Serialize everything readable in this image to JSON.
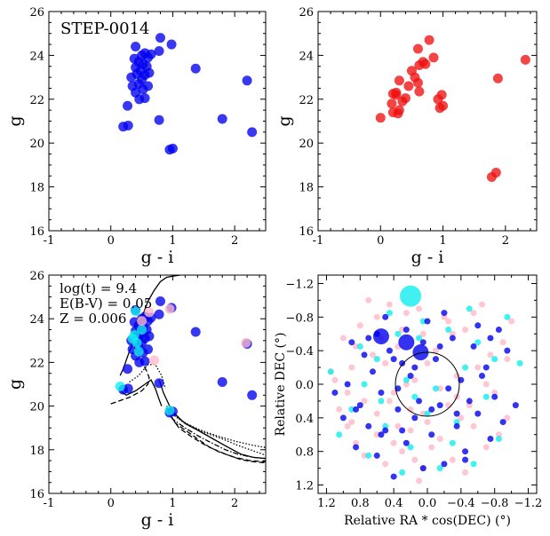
{
  "chart_data": [
    {
      "type": "scatter",
      "title": "STEP-0014",
      "xlabel": "g - i",
      "ylabel": "g",
      "xlim": [
        -1,
        2.5
      ],
      "ylim": [
        26,
        16
      ],
      "xticks": [
        "-1",
        "0",
        "1",
        "2"
      ],
      "yticks": [
        "16",
        "18",
        "20",
        "22",
        "24",
        "26"
      ],
      "series": [
        {
          "name": "members",
          "color": "#0000ee",
          "x": [
            0.95,
            1.0,
            0.2,
            0.28,
            0.27,
            0.78,
            0.46,
            0.55,
            0.4,
            0.52,
            0.35,
            0.6,
            0.45,
            0.5,
            0.33,
            0.55,
            0.42,
            0.62,
            0.48,
            0.4,
            0.58,
            0.52,
            0.45,
            0.38,
            0.6,
            0.5,
            0.65,
            0.55,
            0.78,
            0.4,
            0.8,
            0.98,
            1.37,
            1.8,
            2.2,
            2.28
          ],
          "y": [
            19.7,
            19.75,
            20.75,
            20.8,
            21.7,
            21.05,
            22.0,
            22.05,
            22.3,
            22.45,
            22.6,
            22.6,
            22.7,
            22.9,
            23.0,
            23.1,
            23.15,
            23.2,
            23.3,
            23.45,
            23.5,
            23.6,
            23.7,
            23.85,
            23.9,
            24.0,
            24.05,
            24.1,
            24.2,
            24.4,
            24.8,
            24.5,
            23.4,
            21.1,
            22.85,
            20.5
          ]
        }
      ]
    },
    {
      "type": "scatter",
      "xlabel": "g - i",
      "ylabel": "g",
      "xlim": [
        -1,
        2.5
      ],
      "ylim": [
        26,
        16
      ],
      "xticks": [
        "-1",
        "0",
        "1",
        "2"
      ],
      "yticks": [
        "16",
        "18",
        "20",
        "22",
        "24",
        "26"
      ],
      "series": [
        {
          "name": "field",
          "color": "#ee1111",
          "x": [
            0.0,
            0.2,
            0.28,
            0.18,
            0.35,
            0.25,
            0.45,
            0.62,
            0.6,
            0.95,
            1.0,
            0.92,
            0.98,
            0.3,
            0.55,
            0.5,
            0.62,
            0.68,
            0.72,
            0.85,
            0.6,
            0.78,
            1.78,
            1.85,
            1.88,
            2.32,
            0.25,
            0.3,
            0.4,
            0.2
          ],
          "y": [
            21.15,
            21.4,
            21.35,
            21.8,
            21.9,
            22.3,
            22.6,
            22.35,
            22.75,
            21.6,
            21.7,
            22.0,
            22.2,
            22.85,
            23.0,
            23.3,
            23.55,
            23.7,
            23.6,
            23.9,
            24.3,
            24.7,
            18.45,
            18.65,
            22.95,
            23.8,
            22.2,
            21.5,
            22.05,
            22.25
          ]
        }
      ]
    },
    {
      "type": "scatter",
      "xlabel": "g - i",
      "ylabel": "g",
      "xlim": [
        -1,
        2.5
      ],
      "ylim": [
        26,
        16
      ],
      "xticks": [
        "-1",
        "0",
        "1",
        "2"
      ],
      "yticks": [
        "16",
        "18",
        "20",
        "22",
        "24",
        "26"
      ],
      "annotations": [
        "log(t) = 9.4",
        "E(B-V) = 0.05",
        "Z = 0.006"
      ],
      "series": [
        {
          "name": "members",
          "color": "#0000ee",
          "x": [
            0.95,
            1.0,
            0.2,
            0.28,
            0.27,
            0.78,
            0.46,
            0.55,
            0.4,
            0.52,
            0.35,
            0.6,
            0.45,
            0.5,
            0.33,
            0.55,
            0.42,
            0.62,
            0.48,
            0.4,
            0.58,
            0.52,
            0.45,
            0.38,
            0.6,
            0.5,
            0.65,
            0.55,
            0.78,
            0.4,
            0.8,
            0.98,
            1.37,
            1.8,
            2.2,
            2.28
          ],
          "y": [
            19.7,
            19.75,
            20.75,
            20.8,
            21.7,
            21.05,
            22.0,
            22.05,
            22.3,
            22.45,
            22.6,
            22.6,
            22.7,
            22.9,
            23.0,
            23.1,
            23.15,
            23.2,
            23.3,
            23.45,
            23.5,
            23.6,
            23.7,
            23.85,
            23.9,
            24.0,
            24.05,
            24.1,
            24.2,
            24.4,
            24.8,
            24.5,
            23.4,
            21.1,
            22.85,
            20.5
          ]
        },
        {
          "name": "cyan",
          "color": "#11eeee",
          "x": [
            0.35,
            0.38,
            0.4,
            0.5,
            0.42,
            0.45,
            0.95,
            0.15
          ],
          "y": [
            23.1,
            23.25,
            24.35,
            23.5,
            22.9,
            22.5,
            19.8,
            20.9
          ]
        },
        {
          "name": "pink",
          "color": "#ffb8c8",
          "x": [
            0.62,
            0.95,
            2.18,
            0.7,
            0.5
          ],
          "y": [
            24.3,
            24.45,
            22.9,
            22.1,
            23.9
          ]
        }
      ],
      "isochrones": [
        {
          "name": "iso-a",
          "dash": "solid",
          "x": [
            0.15,
            0.2,
            0.25,
            0.3,
            0.38,
            0.45,
            0.52,
            0.6,
            0.7,
            0.8,
            0.9,
            1.0,
            1.12
          ],
          "y": [
            21.4,
            21.7,
            22.1,
            22.5,
            23.0,
            23.6,
            24.2,
            24.8,
            25.3,
            25.7,
            25.9,
            25.95,
            26.0
          ]
        },
        {
          "name": "iso-b",
          "dash": "dash",
          "x": [
            0.0,
            0.3,
            0.5,
            0.6,
            0.62,
            0.58,
            0.5,
            0.45
          ],
          "y": [
            20.1,
            20.4,
            20.7,
            21.0,
            21.3,
            21.6,
            22.0,
            22.4
          ]
        },
        {
          "name": "iso-c",
          "dash": "solid",
          "x": [
            0.15,
            0.25,
            0.4,
            0.55,
            0.65,
            0.72,
            0.78,
            0.82
          ],
          "y": [
            20.7,
            20.5,
            20.7,
            21.0,
            21.2,
            20.8,
            20.3,
            20.0
          ]
        },
        {
          "name": "iso-d",
          "dash": "dot",
          "x": [
            0.3,
            0.45,
            0.6,
            0.72,
            0.82,
            0.88
          ],
          "y": [
            21.1,
            21.4,
            21.9,
            21.9,
            21.4,
            20.8
          ]
        },
        {
          "name": "giant-1",
          "dash": "solid",
          "x": [
            0.78,
            0.85,
            0.95,
            1.05,
            1.2,
            1.4,
            1.65,
            1.9,
            2.1,
            2.3,
            2.5
          ],
          "y": [
            21.2,
            20.6,
            20.0,
            19.6,
            19.2,
            18.9,
            18.5,
            18.1,
            17.8,
            17.65,
            17.6
          ]
        },
        {
          "name": "giant-2",
          "dash": "dash",
          "x": [
            0.95,
            1.05,
            1.2,
            1.4,
            1.6,
            1.85,
            2.1,
            2.3,
            2.5
          ],
          "y": [
            19.6,
            19.2,
            18.9,
            18.5,
            18.1,
            17.8,
            17.55,
            17.45,
            17.4
          ]
        },
        {
          "name": "giant-3",
          "dash": "dash",
          "x": [
            0.98,
            1.1,
            1.3,
            1.5,
            1.75,
            2.0,
            2.25,
            2.5
          ],
          "y": [
            19.5,
            19.0,
            18.6,
            18.25,
            17.9,
            17.65,
            17.5,
            17.45
          ]
        },
        {
          "name": "giant-4",
          "dash": "dashdot",
          "x": [
            0.9,
            1.0,
            1.2,
            1.4,
            1.6,
            1.85,
            2.05,
            2.3,
            2.5
          ],
          "y": [
            19.9,
            19.4,
            19.0,
            18.65,
            18.35,
            18.0,
            17.8,
            17.65,
            17.6
          ]
        },
        {
          "name": "giant-5",
          "dash": "dot",
          "x": [
            0.9,
            1.05,
            1.25,
            1.5,
            1.8,
            2.05,
            2.3,
            2.5
          ],
          "y": [
            20.0,
            19.5,
            19.15,
            18.8,
            18.5,
            18.2,
            17.95,
            17.75
          ]
        },
        {
          "name": "giant-6",
          "dash": "dot",
          "x": [
            0.95,
            1.15,
            1.4,
            1.7,
            2.0,
            2.3,
            2.5
          ],
          "y": [
            19.8,
            19.3,
            18.95,
            18.65,
            18.4,
            18.2,
            18.1
          ]
        }
      ]
    },
    {
      "type": "scatter",
      "xlabel": "Relative RA * cos(DEC) (°)",
      "ylabel": "Relative DEC (°)",
      "xlim": [
        1.3,
        -1.3
      ],
      "ylim": [
        -1.3,
        1.3
      ],
      "xticks": [
        "1.2",
        "0.8",
        "0.4",
        "0.0",
        "−0.4",
        "−0.8",
        "−1.2"
      ],
      "yticks": [
        "1.2",
        "0.8",
        "0.4",
        "0.0",
        "−0.4",
        "−0.8",
        "−1.2"
      ],
      "circle_radius": 0.38,
      "series": [
        {
          "name": "pink",
          "color": "#ffb8c8",
          "size": 3.5,
          "x": [
            0.1,
            0.05,
            -0.3,
            -0.45,
            0.5,
            0.85,
            -0.7,
            0.95,
            -0.95,
            1.05,
            0.6,
            0.3,
            -0.15,
            -0.55,
            0.75,
            0.0,
            -0.25,
            0.2,
            0.4,
            -0.8,
            1.1,
            0.9,
            -0.35,
            0.15,
            0.65,
            -0.6,
            0.35,
            -0.1,
            0.55,
            -0.9,
            0.05,
            -0.45,
            0.8,
            -0.2,
            0.25,
            1.15,
            -1.0,
            0.45,
            -0.65,
            0.7,
            0.1,
            -0.3,
            0.95,
            -0.85,
            0.35,
            -0.05,
            0.6,
            -0.5,
            0.2,
            0.85,
            -0.75,
            0.5,
            -0.15,
            0.0,
            0.3,
            -0.4,
            0.75,
            -0.95,
            0.4,
            0.15,
            -0.25,
            0.6,
            0.9,
            -0.7,
            0.25,
            -0.55,
            1.0,
            -0.35,
            0.45,
            0.05
          ],
          "y": [
            1.15,
            1.0,
            0.9,
            1.05,
            0.95,
            0.7,
            0.75,
            0.5,
            0.4,
            0.3,
            0.6,
            0.8,
            0.65,
            0.5,
            0.2,
            0.45,
            0.25,
            0.3,
            0.1,
            0.1,
            -0.05,
            -0.2,
            -0.1,
            -0.05,
            -0.35,
            -0.2,
            -0.45,
            -0.4,
            -0.55,
            -0.5,
            -0.6,
            -0.65,
            -0.7,
            -0.8,
            -0.85,
            -0.15,
            -0.75,
            -0.95,
            -0.95,
            -1.0,
            -0.9,
            -0.6,
            0.1,
            0.6,
            0.5,
            0.75,
            0.35,
            0.25,
            0.55,
            -0.45,
            -0.35,
            -0.25,
            0.05,
            -0.25,
            -0.65,
            0.4,
            0.85,
            -0.3,
            0.7,
            0.9,
            -0.75,
            -0.8,
            0.45,
            0.0,
            0.0,
            -0.85,
            -0.55,
            0.15,
            0.2,
            0.35
          ]
        },
        {
          "name": "cyan",
          "color": "#11eeee",
          "size": 3.5,
          "x": [
            0.3,
            -0.15,
            -0.55,
            0.7,
            -0.85,
            1.05,
            0.5,
            -0.35,
            0.0,
            0.15,
            -0.1,
            0.9,
            -0.7,
            0.25,
            -0.45,
            0.6,
            -1.1,
            0.8,
            -0.6,
            0.35,
            -0.25,
            0.05,
            1.15,
            -0.95,
            0.45,
            -0.5,
            0.1,
            0.75,
            -0.3,
            0.55,
            -0.8,
            0.2
          ],
          "y": [
            1.05,
            1.0,
            0.95,
            0.85,
            0.65,
            0.6,
            0.5,
            0.45,
            0.35,
            0.15,
            0.05,
            0.3,
            0.15,
            -0.05,
            -0.2,
            -0.3,
            -0.25,
            -0.45,
            -0.5,
            -0.6,
            -0.65,
            -0.75,
            -0.15,
            -0.8,
            -0.85,
            -0.9,
            -0.55,
            0.0,
            0.7,
            0.2,
            -0.3,
            0.75
          ]
        },
        {
          "name": "blue",
          "color": "#0000ee",
          "size": 3.5,
          "x": [
            0.4,
            0.05,
            -0.2,
            0.6,
            -0.45,
            0.85,
            -0.75,
            0.25,
            -0.05,
            0.5,
            -0.35,
            0.7,
            -0.9,
            1.0,
            0.15,
            -0.6,
            0.35,
            -0.15,
            0.8,
            -0.5,
            0.1,
            -0.8,
            0.55,
            -0.25,
            0.95,
            -0.4,
            0.2,
            0.65,
            -0.7,
            0.3,
            -0.1,
            0.75,
            -0.95,
            0.45,
            -0.55,
            0.05,
            0.9,
            -0.3,
            0.6,
            -0.85,
            0.25,
            -0.6,
            0.0,
            0.5,
            -0.2,
            1.1,
            -0.45,
            0.35,
            0.15,
            -0.05,
            -0.65,
            0.7,
            -0.35,
            0.4,
            0.85,
            -1.05,
            -0.75,
            0.55,
            -0.15,
            0.3
          ],
          "y": [
            1.1,
            1.0,
            0.95,
            0.85,
            0.8,
            0.75,
            0.65,
            0.7,
            0.6,
            0.55,
            0.5,
            0.5,
            0.45,
            0.4,
            0.4,
            0.35,
            0.3,
            0.25,
            0.25,
            0.2,
            0.2,
            0.15,
            0.1,
            0.05,
            0.0,
            -0.05,
            -0.1,
            -0.15,
            -0.2,
            -0.25,
            -0.3,
            -0.35,
            -0.4,
            -0.4,
            -0.45,
            -0.5,
            -0.5,
            -0.55,
            -0.6,
            -0.65,
            -0.65,
            -0.7,
            -0.75,
            -0.8,
            -0.85,
            0.1,
            0.9,
            0.05,
            -0.2,
            0.3,
            -0.1,
            -0.55,
            0.35,
            -0.3,
            0.3,
            0.25,
            -0.55,
            0.6,
            -0.45,
            0.55
          ]
        },
        {
          "name": "highlights",
          "color": "#0000ee",
          "size": 9,
          "x": [
            0.55,
            0.08,
            0.25
          ],
          "y": [
            -0.57,
            -0.38,
            -0.5
          ]
        },
        {
          "name": "big-cyan",
          "color": "#11eeee",
          "size": 12,
          "x": [
            0.2
          ],
          "y": [
            -1.05
          ]
        }
      ]
    }
  ]
}
